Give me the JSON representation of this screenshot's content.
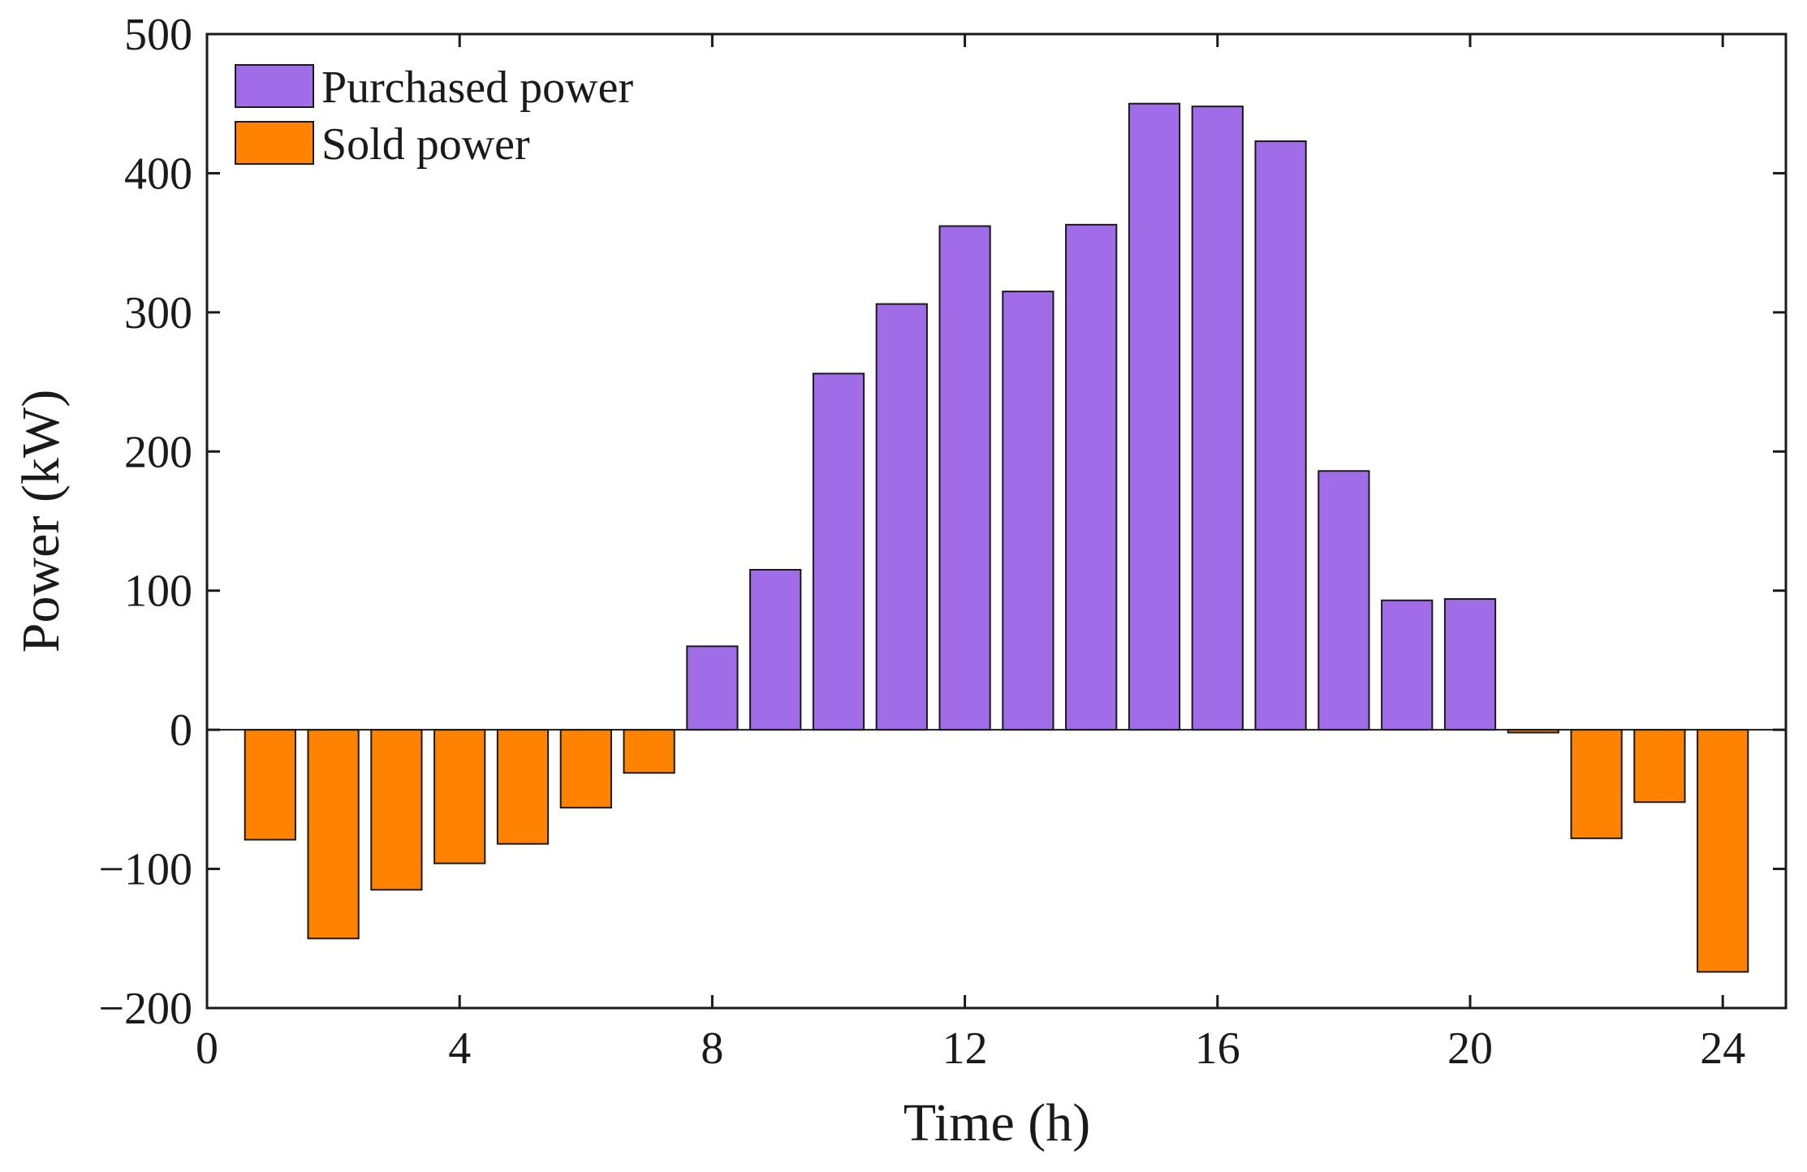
{
  "chart_data": {
    "type": "bar",
    "title": "",
    "xlabel": "Time (h)",
    "ylabel": "Power (kW)",
    "xlim": [
      0,
      25
    ],
    "ylim": [
      -200,
      500
    ],
    "xticks": [
      0,
      4,
      8,
      12,
      16,
      20,
      24
    ],
    "yticks": [
      -200,
      -100,
      0,
      100,
      200,
      300,
      400,
      500
    ],
    "ytick_labels": [
      "−200",
      "−100",
      "0",
      "100",
      "200",
      "300",
      "400",
      "500"
    ],
    "legend_position": "top-left",
    "grid": false,
    "series": [
      {
        "name": "Purchased power",
        "color": "#a06ce8",
        "x": [
          8,
          9,
          10,
          11,
          12,
          13,
          14,
          15,
          16,
          17,
          18,
          19,
          20
        ],
        "values": [
          60,
          115,
          256,
          306,
          362,
          315,
          363,
          450,
          448,
          423,
          186,
          93,
          94
        ]
      },
      {
        "name": "Sold power",
        "color": "#ff8300",
        "x": [
          1,
          2,
          3,
          4,
          5,
          6,
          7,
          21,
          22,
          23,
          24
        ],
        "values": [
          -79,
          -150,
          -115,
          -96,
          -82,
          -56,
          -31,
          -2,
          -78,
          -52,
          -174
        ]
      }
    ]
  }
}
